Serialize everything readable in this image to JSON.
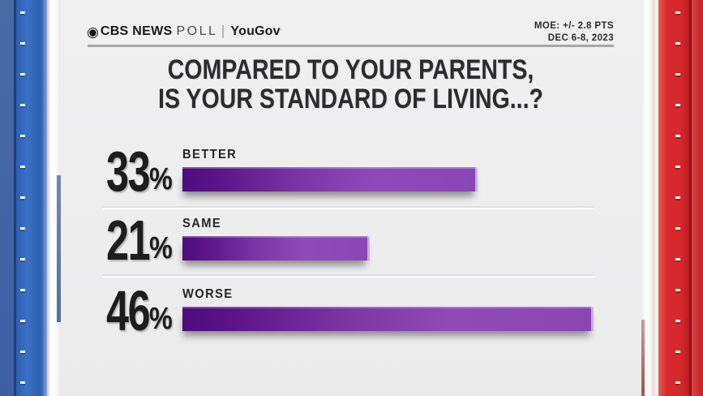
{
  "brand": {
    "eye_icon": "◉",
    "network": "CBS NEWS",
    "show": "POLL",
    "partner": "YouGov",
    "trademark": "’"
  },
  "meta": {
    "moe": "MOE: +/- 2.8 PTS",
    "date": "DEC 6-8, 2023"
  },
  "title": {
    "line1": "COMPARED TO YOUR PARENTS,",
    "line2": "IS YOUR STANDARD OF LIVING...?"
  },
  "chart_data": {
    "type": "bar",
    "orientation": "horizontal",
    "title": "COMPARED TO YOUR PARENTS, IS YOUR STANDARD OF LIVING...?",
    "categories": [
      "BETTER",
      "SAME",
      "WORSE"
    ],
    "values": [
      33,
      21,
      46
    ],
    "unit": "%",
    "xlim": [
      0,
      50
    ],
    "grid": false,
    "legend": false,
    "bar_gradient": [
      "#4d0c7f",
      "#8e4bb8"
    ],
    "accent_colors": {
      "left_panel_blue": "#2f63b4",
      "right_panel_red": "#d7282c",
      "background": "#efeff0"
    }
  }
}
